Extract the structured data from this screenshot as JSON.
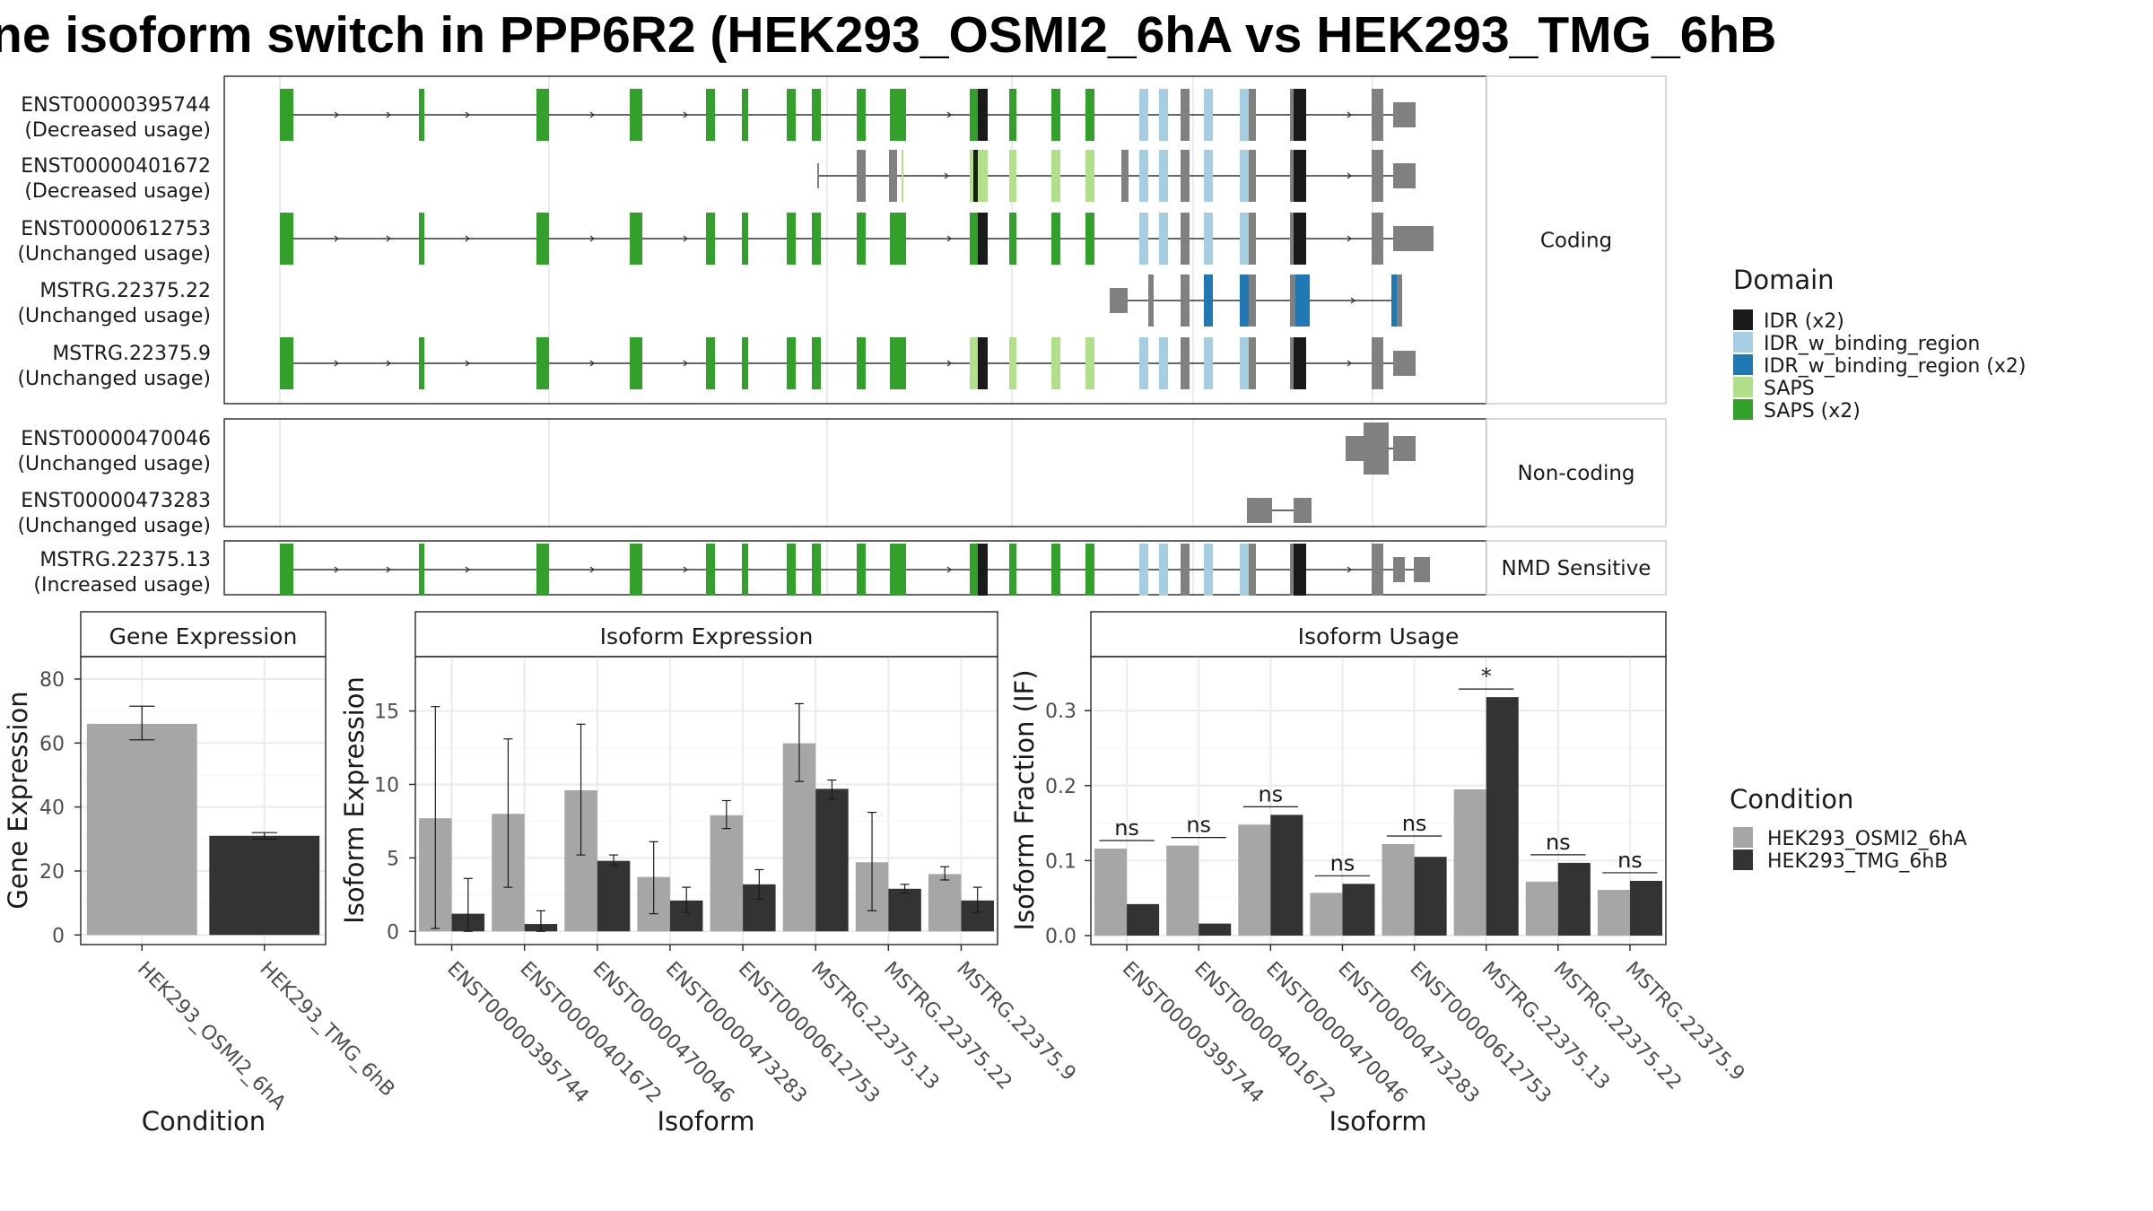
{
  "title": "ne isoform switch in PPP6R2 (HEK293_OSMI2_6hA vs HEK293_TMG_6hB",
  "colors": {
    "exon_default": "#808080",
    "IDR (x2)": "#1a1a1a",
    "IDR_w_binding_region": "#a6cee3",
    "IDR_w_binding_region (x2)": "#1f78b4",
    "SAPS": "#b2df8a",
    "SAPS (x2)": "#33a02c",
    "cond_a": "#a6a6a6",
    "cond_b": "#333333"
  },
  "structure": {
    "legend_title": "Domain",
    "legend": [
      "IDR (x2)",
      "IDR_w_binding_region",
      "IDR_w_binding_region (x2)",
      "SAPS",
      "SAPS (x2)"
    ],
    "panels": [
      {
        "label": "Coding",
        "isoforms": [
          {
            "name": "ENST00000395744",
            "usage": "(Decreased usage)",
            "pattern": "full"
          },
          {
            "name": "ENST00000401672",
            "usage": "(Decreased usage)",
            "pattern": "short"
          },
          {
            "name": "ENST00000612753",
            "usage": "(Unchanged usage)",
            "pattern": "full_wide"
          },
          {
            "name": "MSTRG.22375.22",
            "usage": "(Unchanged usage)",
            "pattern": "tail"
          },
          {
            "name": "MSTRG.22375.9",
            "usage": "(Unchanged usage)",
            "pattern": "full_light"
          }
        ]
      },
      {
        "label": "Non-coding",
        "isoforms": [
          {
            "name": "ENST00000470046",
            "usage": "(Unchanged usage)",
            "pattern": "nc1"
          },
          {
            "name": "ENST00000473283",
            "usage": "(Unchanged usage)",
            "pattern": "nc2"
          }
        ]
      },
      {
        "label": "NMD Sensitive",
        "isoforms": [
          {
            "name": "MSTRG.22375.13",
            "usage": "(Increased usage)",
            "pattern": "nmd"
          }
        ]
      }
    ]
  },
  "conditions": {
    "legend_title": "Condition",
    "a": "HEK293_OSMI2_6hA",
    "b": "HEK293_TMG_6hB"
  },
  "chart_data": [
    {
      "type": "bar",
      "title": "Gene Expression",
      "xlabel": "Condition",
      "ylabel": "Gene Expression",
      "categories": [
        "HEK293_OSMI2_6hA",
        "HEK293_TMG_6hB"
      ],
      "values": [
        66,
        31
      ],
      "errors": [
        [
          61,
          71.5
        ],
        [
          30,
          32
        ]
      ],
      "ylim": [
        -3,
        87
      ],
      "yticks": [
        0,
        20,
        40,
        60,
        80
      ]
    },
    {
      "type": "bar",
      "title": "Isoform Expression",
      "xlabel": "Isoform",
      "ylabel": "Isoform Expression",
      "categories": [
        "ENST00000395744",
        "ENST00000401672",
        "ENST00000470046",
        "ENST00000473283",
        "ENST00000612753",
        "MSTRG.22375.13",
        "MSTRG.22375.22",
        "MSTRG.22375.9"
      ],
      "series": [
        {
          "name": "HEK293_OSMI2_6hA",
          "values": [
            7.7,
            8.0,
            9.6,
            3.7,
            7.9,
            12.8,
            4.7,
            3.9
          ],
          "errors": [
            [
              0.2,
              15.3
            ],
            [
              3.0,
              13.1
            ],
            [
              5.2,
              14.1
            ],
            [
              1.2,
              6.1
            ],
            [
              7.0,
              8.9
            ],
            [
              10.2,
              15.5
            ],
            [
              1.4,
              8.1
            ],
            [
              3.5,
              4.4
            ]
          ]
        },
        {
          "name": "HEK293_TMG_6hB",
          "values": [
            1.2,
            0.5,
            4.8,
            2.1,
            3.2,
            9.7,
            2.9,
            2.1
          ],
          "errors": [
            [
              0.0,
              3.6
            ],
            [
              0.0,
              1.4
            ],
            [
              4.5,
              5.2
            ],
            [
              1.3,
              3.0
            ],
            [
              2.2,
              4.2
            ],
            [
              9.0,
              10.3
            ],
            [
              2.6,
              3.2
            ],
            [
              1.3,
              3.0
            ]
          ]
        }
      ],
      "ylim": [
        -0.9,
        18.7
      ],
      "yticks": [
        0,
        5,
        10,
        15
      ]
    },
    {
      "type": "bar",
      "title": "Isoform Usage",
      "xlabel": "Isoform",
      "ylabel": "Isoform Fraction (IF)",
      "categories": [
        "ENST00000395744",
        "ENST00000401672",
        "ENST00000470046",
        "ENST00000473283",
        "ENST00000612753",
        "MSTRG.22375.13",
        "MSTRG.22375.22",
        "MSTRG.22375.9"
      ],
      "series": [
        {
          "name": "HEK293_OSMI2_6hA",
          "values": [
            0.116,
            0.12,
            0.148,
            0.057,
            0.122,
            0.195,
            0.072,
            0.061
          ]
        },
        {
          "name": "HEK293_TMG_6hB",
          "values": [
            0.042,
            0.016,
            0.161,
            0.069,
            0.105,
            0.318,
            0.097,
            0.073
          ]
        }
      ],
      "significance": [
        "ns",
        "ns",
        "ns",
        "ns",
        "ns",
        "*",
        "ns",
        "ns"
      ],
      "ylim": [
        -0.012,
        0.372
      ],
      "yticks": [
        0.0,
        0.1,
        0.2,
        0.3
      ],
      "ytick_labels": [
        "0.0",
        "0.1",
        "0.2",
        "0.3"
      ]
    }
  ]
}
